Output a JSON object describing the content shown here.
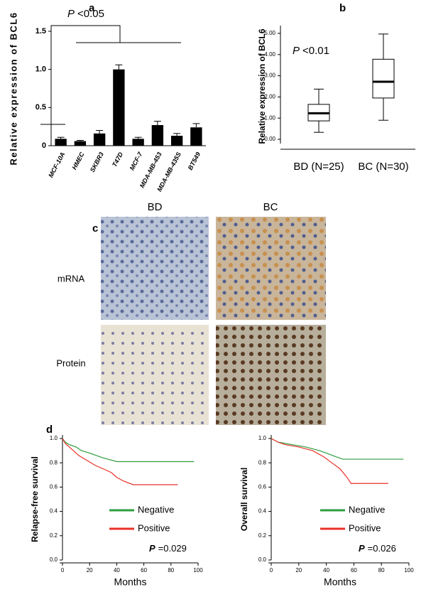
{
  "chart_data": [
    {
      "type": "bar",
      "panel_label": "a",
      "ylabel": "Relative expression of BCL6",
      "annotation_symbol": "P",
      "annotation": "<0.05",
      "categories": [
        "MCF-10A",
        "HMEC",
        "SKBR3",
        "T47D",
        "MCF-7",
        "MDA-MB-453",
        "MDA-MB-435S",
        "BT549"
      ],
      "values": [
        0.09,
        0.06,
        0.16,
        1.0,
        0.09,
        0.27,
        0.13,
        0.24
      ],
      "errors": [
        0.02,
        0.01,
        0.04,
        0.06,
        0.02,
        0.05,
        0.03,
        0.05
      ],
      "color": "#000000",
      "ylim": [
        0,
        1.5
      ],
      "yticks": [
        0,
        {
          "value": 0.5,
          "label": "0.5"
        },
        {
          "value": 1,
          "label": "1.0"
        },
        {
          "value": 1.5,
          "label": "1.5"
        }
      ]
    },
    {
      "type": "box",
      "panel_label": "b",
      "ylabel": "Relative expression of BCL6",
      "annotation_symbol": "P",
      "annotation": "<0.01",
      "categories": [
        "BD (N=25)",
        "BC (N=30)"
      ],
      "boxes": [
        {
          "min": 0.33,
          "q1": 0.87,
          "median": 1.23,
          "q3": 1.65,
          "max": 2.37
        },
        {
          "min": 0.9,
          "q1": 1.95,
          "median": 2.72,
          "q3": 3.78,
          "max": 4.97
        }
      ],
      "ylim": [
        -0.2,
        5.2
      ],
      "yticks": [
        {
          "value": 0,
          "label": "0.00"
        },
        {
          "value": 1,
          "label": "1.00"
        },
        {
          "value": 2,
          "label": "2.00"
        },
        {
          "value": 3,
          "label": "3.00"
        },
        {
          "value": 4,
          "label": "4.00"
        },
        {
          "value": 5,
          "label": "5.00"
        }
      ]
    },
    {
      "type": "line",
      "panel_label": "d",
      "ylabel": "Relapse-free survival",
      "xlabel": "Months",
      "annotation_symbol": "P",
      "annotation": "=0.029",
      "legend": "lower right",
      "xlim": [
        0,
        100
      ],
      "xticks": [
        0,
        20,
        40,
        60,
        80,
        100
      ],
      "ylim": [
        0,
        1
      ],
      "yticks": [
        {
          "value": 0,
          "label": "0.0"
        },
        {
          "value": 0.2,
          "label": "0.2"
        },
        {
          "value": 0.4,
          "label": "0.4"
        },
        {
          "value": 0.6,
          "label": "0.6"
        },
        {
          "value": 0.8,
          "label": "0.8"
        },
        {
          "value": 1,
          "label": "1.0"
        }
      ],
      "series": [
        {
          "name": "Negative",
          "color": "#2e9e3e",
          "x": [
            0,
            2,
            5,
            10,
            14,
            20,
            25,
            30,
            40,
            97
          ],
          "values": [
            1,
            0.97,
            0.95,
            0.93,
            0.9,
            0.88,
            0.86,
            0.84,
            0.81,
            0.81
          ]
        },
        {
          "name": "Positive",
          "color": "#e8312a",
          "x": [
            0,
            2,
            5,
            8,
            12,
            18,
            24,
            30,
            36,
            40,
            45,
            52,
            85
          ],
          "values": [
            1,
            0.96,
            0.93,
            0.9,
            0.86,
            0.82,
            0.78,
            0.75,
            0.72,
            0.68,
            0.65,
            0.62,
            0.62
          ]
        }
      ]
    },
    {
      "type": "line",
      "ylabel": "Overall survival",
      "xlabel": "Months",
      "annotation_symbol": "P",
      "annotation": "=0.026",
      "legend": "lower right",
      "xlim": [
        0,
        100
      ],
      "xticks": [
        0,
        20,
        40,
        60,
        80,
        100
      ],
      "ylim": [
        0,
        1
      ],
      "yticks": [
        {
          "value": 0,
          "label": "0.0"
        },
        {
          "value": 0.2,
          "label": "0.2"
        },
        {
          "value": 0.4,
          "label": "0.4"
        },
        {
          "value": 0.6,
          "label": "0.6"
        },
        {
          "value": 0.8,
          "label": "0.8"
        },
        {
          "value": 1,
          "label": "1.0"
        }
      ],
      "series": [
        {
          "name": "Negative",
          "color": "#2e9e3e",
          "x": [
            0,
            5,
            15,
            25,
            35,
            40,
            47,
            52,
            96
          ],
          "values": [
            1,
            0.97,
            0.95,
            0.93,
            0.9,
            0.88,
            0.85,
            0.83,
            0.83
          ]
        },
        {
          "name": "Positive",
          "color": "#e8312a",
          "x": [
            0,
            5,
            10,
            20,
            30,
            38,
            44,
            50,
            55,
            58,
            85
          ],
          "values": [
            1,
            0.97,
            0.95,
            0.93,
            0.9,
            0.85,
            0.8,
            0.75,
            0.68,
            0.63,
            0.63
          ]
        }
      ]
    }
  ],
  "panel_c": {
    "label": "c",
    "columns": [
      "BD",
      "BC"
    ],
    "rows": [
      "mRNA",
      "Protein"
    ]
  }
}
